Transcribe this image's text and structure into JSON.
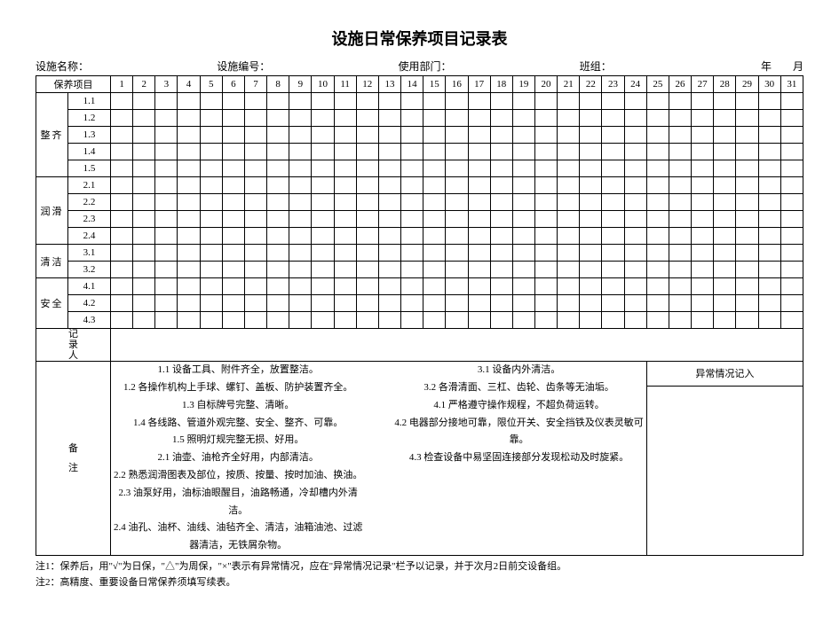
{
  "title": "设施日常保养项目记录表",
  "header": {
    "facility_name_label": "设施名称：",
    "facility_no_label": "设施编号：",
    "dept_label": "使用部门：",
    "team_label": "班组：",
    "date_label": "年　　月"
  },
  "colhead_item": "保养项目",
  "days": [
    "1",
    "2",
    "3",
    "4",
    "5",
    "6",
    "7",
    "8",
    "9",
    "10",
    "11",
    "12",
    "13",
    "14",
    "15",
    "16",
    "17",
    "18",
    "19",
    "20",
    "21",
    "22",
    "23",
    "24",
    "25",
    "26",
    "27",
    "28",
    "29",
    "30",
    "31"
  ],
  "cats": [
    {
      "label": "整齐",
      "items": [
        "1.1",
        "1.2",
        "1.3",
        "1.4",
        "1.5"
      ]
    },
    {
      "label": "润滑",
      "items": [
        "2.1",
        "2.2",
        "2.3",
        "2.4"
      ]
    },
    {
      "label": "清洁",
      "items": [
        "3.1",
        "3.2"
      ]
    },
    {
      "label": "安全",
      "items": [
        "4.1",
        "4.2",
        "4.3"
      ]
    }
  ],
  "recorder_label": "记录人",
  "remarks_label": "备注",
  "remarks_colA": [
    "1.1 设备工具、附件齐全，放置整洁。",
    "1.2 各操作机构上手球、螺钉、盖板、防护装置齐全。",
    "1.3 自标牌号完整、清晰。",
    "1.4 各线路、管道外观完整、安全、整齐、可靠。",
    "1.5 照明灯规完整无损、好用。",
    "2.1 油壶、油枪齐全好用，内部清洁。",
    "2.2 熟悉润滑图表及部位，按质、按量、按时加油、换油。",
    "2.3 油泵好用，油标油眼醒目，油路畅通，冷却槽内外清洁。",
    "2.4 油孔、油杯、油线、油毡齐全、清洁，油箱油池、过滤器清洁，无铁屑杂物。"
  ],
  "remarks_colB": [
    "3.1 设备内外清洁。",
    "3.2 各滑清面、三杠、齿轮、齿条等无油垢。",
    "4.1 严格遵守操作规程，不超负荷运转。",
    "4.2 电器部分接地可靠，限位开关、安全挡铁及仪表灵敏可靠。",
    "4.3 检查设备中易坚固连接部分发现松动及时旋紧。"
  ],
  "abnormal_label": "异常情况记入",
  "notes": [
    "注1：保养后，用\"√\"为日保，\"△\"为周保，\"×\"表示有异常情况，应在\"异常情况记录\"栏予以记录，并于次月2日前交设备组。",
    "注2：高精度、重要设备日常保养须填写续表。"
  ],
  "style": {
    "border_color": "#000000",
    "background": "#ffffff",
    "font": "SimSun"
  }
}
